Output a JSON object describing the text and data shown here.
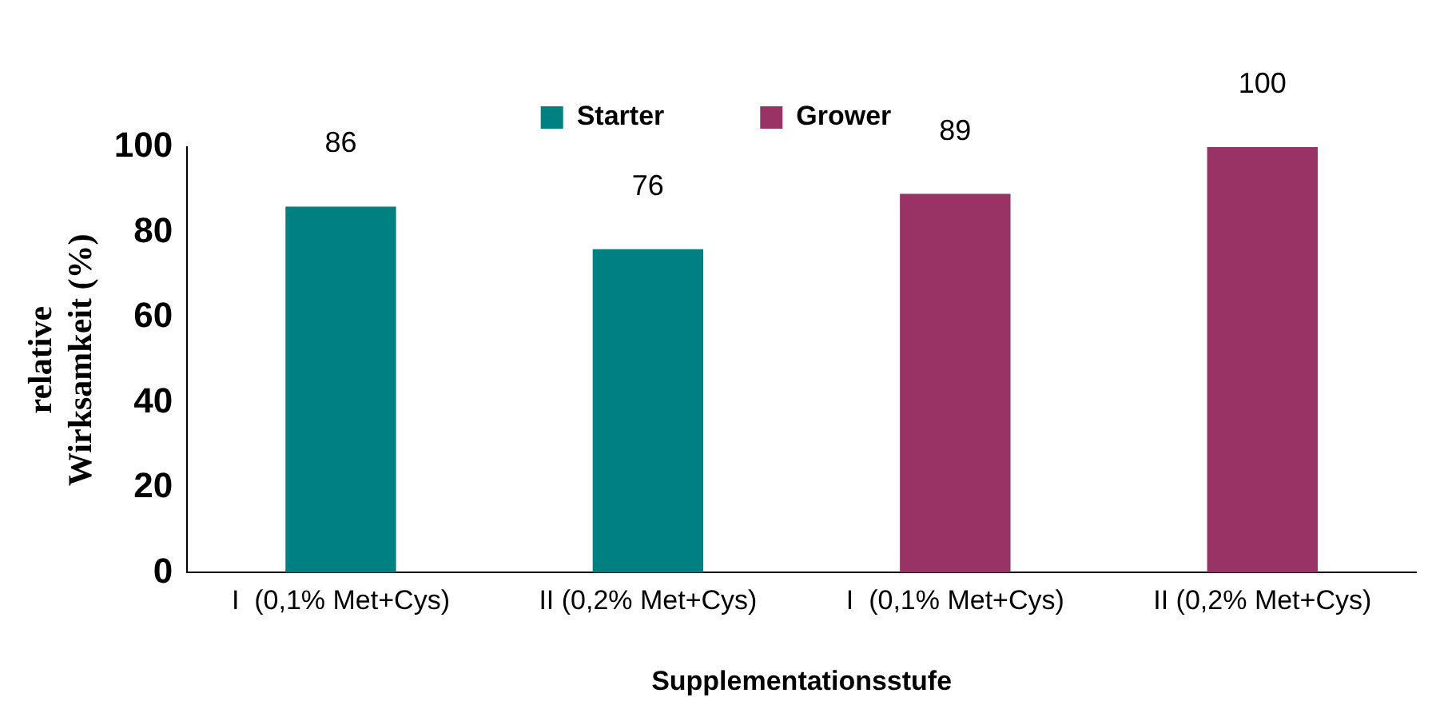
{
  "chart_data": {
    "type": "bar",
    "xlabel": "Supplementationsstufe",
    "ylabel": "relative Wirksamkeit (%)",
    "categories": [
      "I  (0,1% Met+Cys)",
      "II (0,2% Met+Cys)",
      "I  (0,1% Met+Cys)",
      "II (0,2% Met+Cys)"
    ],
    "series": [
      {
        "name": "Starter",
        "color": "#008080",
        "values": [
          86,
          76,
          null,
          null
        ]
      },
      {
        "name": "Grower",
        "color": "#993366",
        "values": [
          null,
          null,
          89,
          100
        ]
      }
    ],
    "ylim": [
      0,
      100
    ],
    "yticks": [
      0,
      20,
      40,
      60,
      80,
      100
    ],
    "grid": false,
    "legend": "top",
    "data_labels": true
  }
}
